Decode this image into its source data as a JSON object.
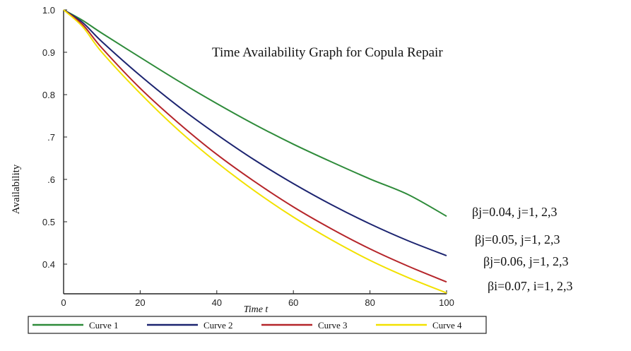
{
  "chart_data": {
    "type": "line",
    "title": "Time Availability Graph for Copula Repair",
    "xlabel": "Time t",
    "ylabel": "Availability",
    "xlim": [
      0,
      100
    ],
    "ylim": [
      0.33,
      1.0
    ],
    "x_ticks": [
      0,
      20,
      40,
      60,
      80,
      100
    ],
    "x_tick_labels": [
      "0",
      "20",
      "40",
      "60",
      "80",
      "100"
    ],
    "y_ticks": [
      0.4,
      0.5,
      0.6,
      0.7,
      0.8,
      0.9,
      1.0
    ],
    "y_tick_labels": [
      "0.4",
      "0.5",
      ".6",
      ".7",
      "0.8",
      "0.9",
      "1.0"
    ],
    "grid": false,
    "legend_position": "bottom",
    "x": [
      0,
      5,
      10,
      20,
      30,
      40,
      50,
      60,
      70,
      80,
      90,
      100
    ],
    "series": [
      {
        "name": "Curve 1",
        "color": "#2e8b3a",
        "annotation": "βj=0.04, j=1, 2,3",
        "values": [
          1.0,
          0.975,
          0.945,
          0.888,
          0.832,
          0.779,
          0.729,
          0.683,
          0.641,
          0.601,
          0.564,
          0.513
        ]
      },
      {
        "name": "Curve 2",
        "color": "#1c2470",
        "annotation": "βj=0.05, j=1, 2,3",
        "values": [
          1.0,
          0.97,
          0.925,
          0.845,
          0.772,
          0.706,
          0.645,
          0.59,
          0.54,
          0.495,
          0.455,
          0.42
        ]
      },
      {
        "name": "Curve 3",
        "color": "#b5252a",
        "annotation": "βj=0.06, j=1, 2,3",
        "values": [
          1.0,
          0.965,
          0.91,
          0.815,
          0.733,
          0.659,
          0.594,
          0.535,
          0.483,
          0.436,
          0.395,
          0.358
        ]
      },
      {
        "name": "Curve 4",
        "color": "#f2e100",
        "annotation": "βi=0.07, i=1, 2,3",
        "values": [
          1.0,
          0.96,
          0.9,
          0.803,
          0.716,
          0.64,
          0.572,
          0.511,
          0.457,
          0.409,
          0.368,
          0.332
        ]
      }
    ]
  }
}
